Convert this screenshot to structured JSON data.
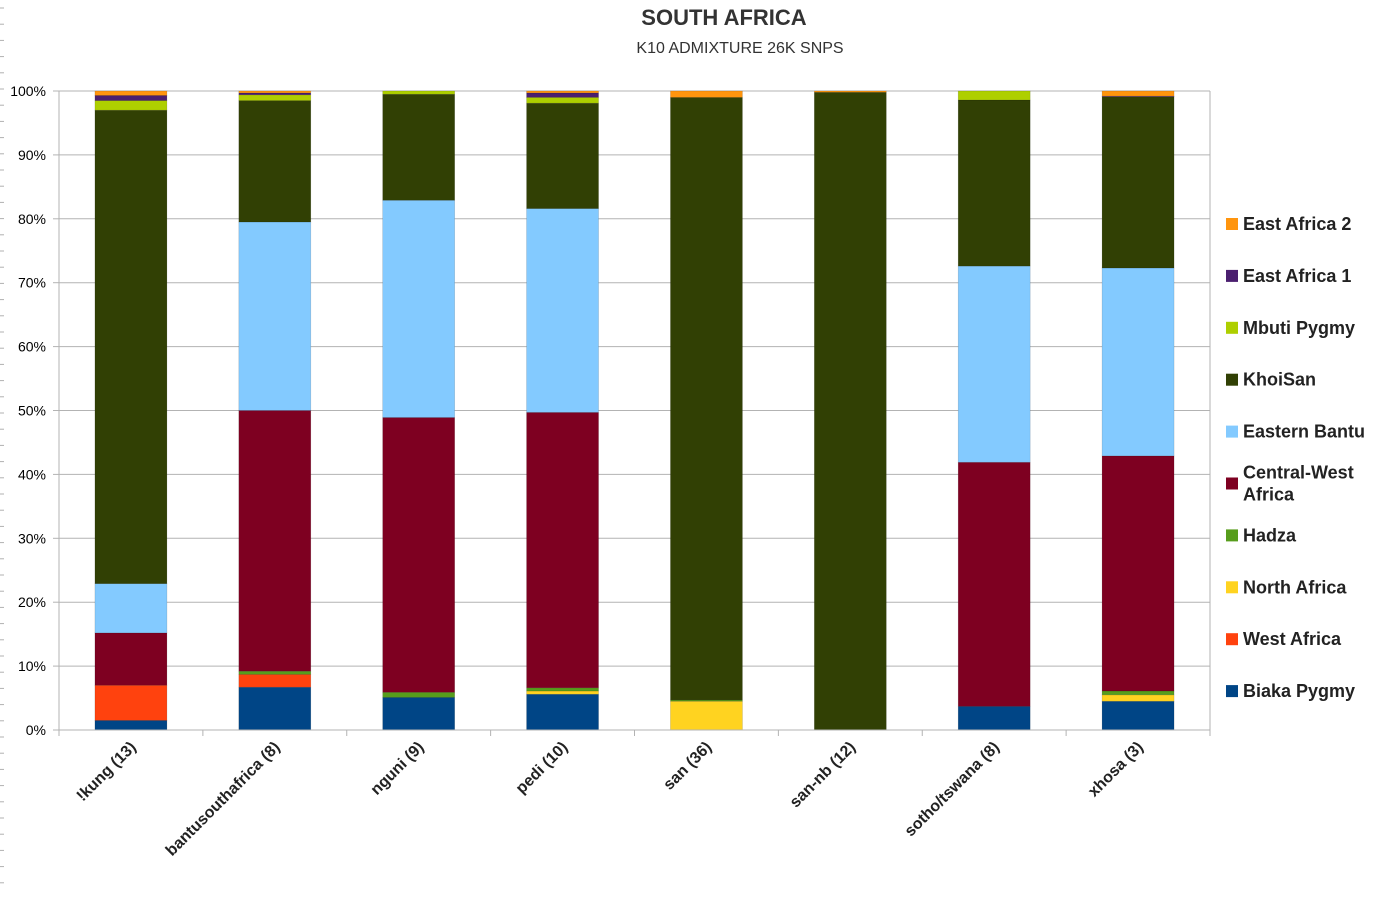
{
  "chart_data": {
    "type": "bar",
    "stacked": true,
    "title": "SOUTH AFRICA",
    "subtitle": "K10 ADMIXTURE 26K SNPS",
    "ylim": [
      0,
      100
    ],
    "yticks": [
      "0%",
      "10%",
      "20%",
      "30%",
      "40%",
      "50%",
      "60%",
      "70%",
      "80%",
      "90%",
      "100%"
    ],
    "grid": true,
    "legend_position": "right",
    "categories": [
      "!kung (13)",
      "bantusouthafrica (8)",
      "nguni (9)",
      "pedi (10)",
      "san (36)",
      "san-nb (12)",
      "sotho/tswana (8)",
      "xhosa (3)"
    ],
    "series": [
      {
        "name": "Biaka Pygmy",
        "color": "#004586",
        "values": [
          1.5,
          6.7,
          5.1,
          5.6,
          0.0,
          0.0,
          3.7,
          4.5
        ]
      },
      {
        "name": "West Africa",
        "color": "#ff420e",
        "values": [
          5.5,
          2.0,
          0.0,
          0.0,
          0.0,
          0.0,
          0.0,
          0.0
        ]
      },
      {
        "name": "North Africa",
        "color": "#ffd320",
        "values": [
          0.0,
          0.0,
          0.0,
          0.5,
          4.5,
          0.0,
          0.0,
          1.0
        ]
      },
      {
        "name": "Hadza",
        "color": "#579d1c",
        "values": [
          0.0,
          0.5,
          0.8,
          0.5,
          0.2,
          0.0,
          0.0,
          0.6
        ]
      },
      {
        "name": "Central-West Africa",
        "color": "#7e0021",
        "values": [
          8.2,
          40.8,
          43.0,
          43.1,
          0.0,
          0.0,
          38.2,
          36.8
        ]
      },
      {
        "name": "Eastern Bantu",
        "color": "#83caff",
        "values": [
          7.7,
          29.5,
          34.0,
          31.9,
          0.0,
          0.0,
          30.7,
          29.4
        ]
      },
      {
        "name": "KhoiSan",
        "color": "#314004",
        "values": [
          74.1,
          19.0,
          16.6,
          16.5,
          94.3,
          99.8,
          26.0,
          26.8
        ]
      },
      {
        "name": "Mbuti Pygmy",
        "color": "#aecf00",
        "values": [
          1.5,
          0.9,
          0.5,
          0.9,
          0.0,
          0.0,
          1.4,
          0.0
        ]
      },
      {
        "name": "East Africa 1",
        "color": "#4b1f6f",
        "values": [
          0.8,
          0.3,
          0.0,
          0.7,
          0.0,
          0.0,
          0.0,
          0.1
        ]
      },
      {
        "name": "East Africa 2",
        "color": "#ff950e",
        "values": [
          0.7,
          0.3,
          0.0,
          0.3,
          1.0,
          0.2,
          0.0,
          0.8
        ]
      }
    ]
  }
}
